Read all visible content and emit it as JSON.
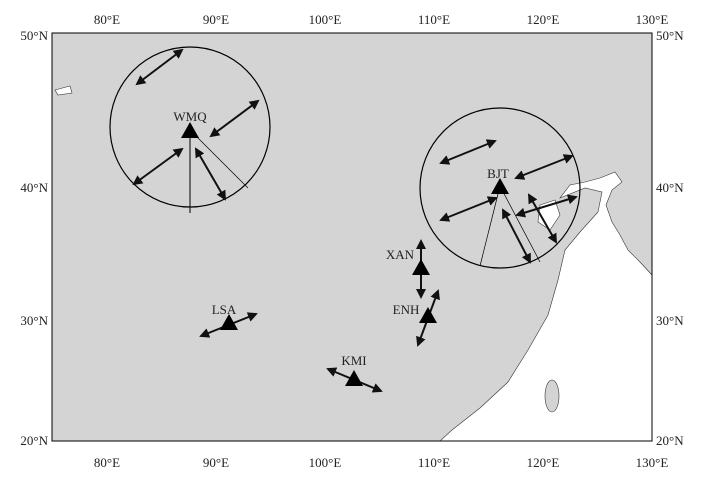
{
  "map": {
    "lon_labels": [
      "80°E",
      "90°E",
      "100°E",
      "110°E",
      "120°E",
      "130°E"
    ],
    "lat_labels": [
      "50°N",
      "40°N",
      "30°N",
      "20°N"
    ],
    "stations": [
      "WMQ",
      "BJT",
      "XAN",
      "ENH",
      "LSA",
      "KMI"
    ]
  }
}
